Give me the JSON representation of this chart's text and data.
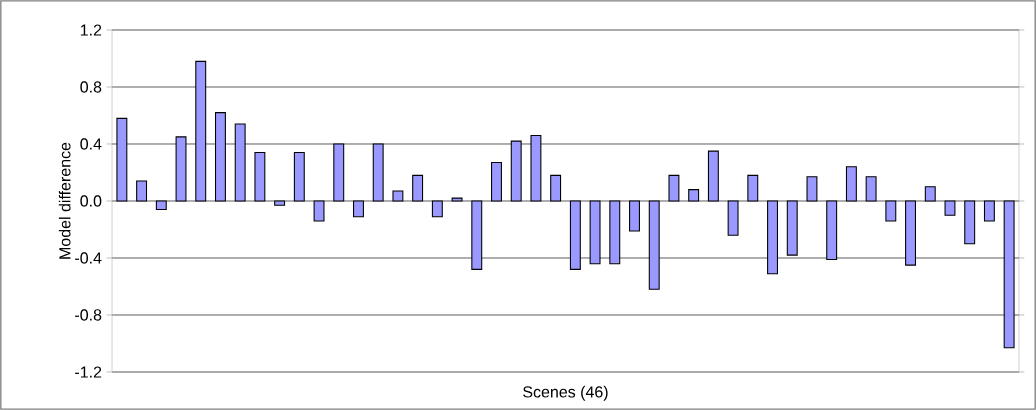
{
  "chart_data": {
    "type": "bar",
    "xlabel": "Scenes (46)",
    "ylabel": "Model difference",
    "categories": [
      null,
      null,
      null,
      null,
      null,
      null,
      null,
      null,
      null,
      null,
      null,
      null,
      null,
      null,
      null,
      null,
      null,
      null,
      null,
      null,
      null,
      null,
      null,
      null,
      null,
      null,
      null,
      null,
      null,
      null,
      null,
      null,
      null,
      null,
      null,
      null,
      null,
      null,
      null,
      null,
      null,
      null,
      null,
      null,
      null,
      null
    ],
    "values": [
      0.58,
      0.14,
      -0.06,
      0.45,
      0.98,
      0.62,
      0.54,
      0.34,
      -0.03,
      0.34,
      -0.14,
      0.4,
      -0.11,
      0.4,
      0.07,
      0.18,
      -0.11,
      0.02,
      -0.48,
      0.27,
      0.42,
      0.46,
      0.18,
      -0.48,
      -0.44,
      -0.44,
      -0.21,
      -0.62,
      0.18,
      0.08,
      0.35,
      -0.24,
      0.18,
      -0.51,
      -0.38,
      0.17,
      -0.41,
      0.24,
      0.17,
      -0.14,
      -0.45,
      0.1,
      -0.1,
      -0.3,
      -0.14,
      -1.03
    ],
    "color": "#9999ff",
    "ylim": [
      -1.2,
      1.2
    ],
    "yticks": [
      -1.2,
      -0.8,
      -0.4,
      {
        "value": 0,
        "label": "0.0"
      },
      0.4,
      0.8,
      1.2
    ],
    "grid": "y"
  }
}
